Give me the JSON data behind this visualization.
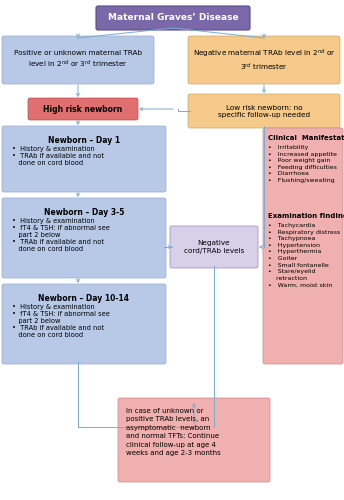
{
  "title": "Maternal Graves’ Disease",
  "box_colors": {
    "purple": "#7b68a8",
    "orange": "#f5c98a",
    "salmon": "#e07070",
    "blue": "#b8c9e8",
    "light_pink": "#f0b0b0",
    "lavender": "#d8d0e8"
  },
  "arrow_color": "#7aaccf",
  "bg_color": "#ffffff",
  "left_trab_text": "Positive or unknown maternal TRAb\nlevel in 2$^{nd}$ or 3$^{rd}$ trimester",
  "right_trab_text": "Negative maternal TRAb level in 2$^{nd}$ or\n3$^{rd}$ trimester",
  "lowrisk_text": "Low risk newborn: no\nspecific follow-up needed",
  "highrisk_text": "High risk newborn",
  "nb1_title": "Newborn – Day 1",
  "nb1_bullets": "•  History & examination\n•  TRAb if available and not\n   done on cord blood",
  "nb2_title": "Newborn – Day 3-5",
  "nb2_bullets": "•  History & examination\n•  fT4 & TSH: if abnormal see\n   part 2 below\n•  TRAb if available and not\n   done on cord blood",
  "nb3_title": "Newborn – Day 10-14",
  "nb3_bullets": "•  History & examination\n•  fT4 & TSH: if abnormal see\n   part 2 below\n•  TRAb if available and not\n   done on cord blood",
  "neg_cord_text": "Negative\ncord/TRAb levels",
  "clin_title": "Clinical  Manifestations",
  "clin_bullets": "•   Irritability\n•   Increased appetite\n•   Poor weight gain\n•   Feeding difficulties\n•   Diarrhoea\n•   Flushing/sweating",
  "exam_title": "Examination findings",
  "exam_bullets": "•   Tachycardia\n•   Respiratory distress\n•   Tachypnoea\n•   Hypertension\n•   Hyperthermia\n•   Goiter\n•   Small fontanelle\n•   Stare/eyelid\n    retraction\n•   Warm, moist skin",
  "bot_text": "In case of unknown or\npositive TRAb levels, an\nasymptomatic  newborn\nand normal TFTs: Continue\nclinical follow-up at age 4\nweeks and age 2-3 months"
}
